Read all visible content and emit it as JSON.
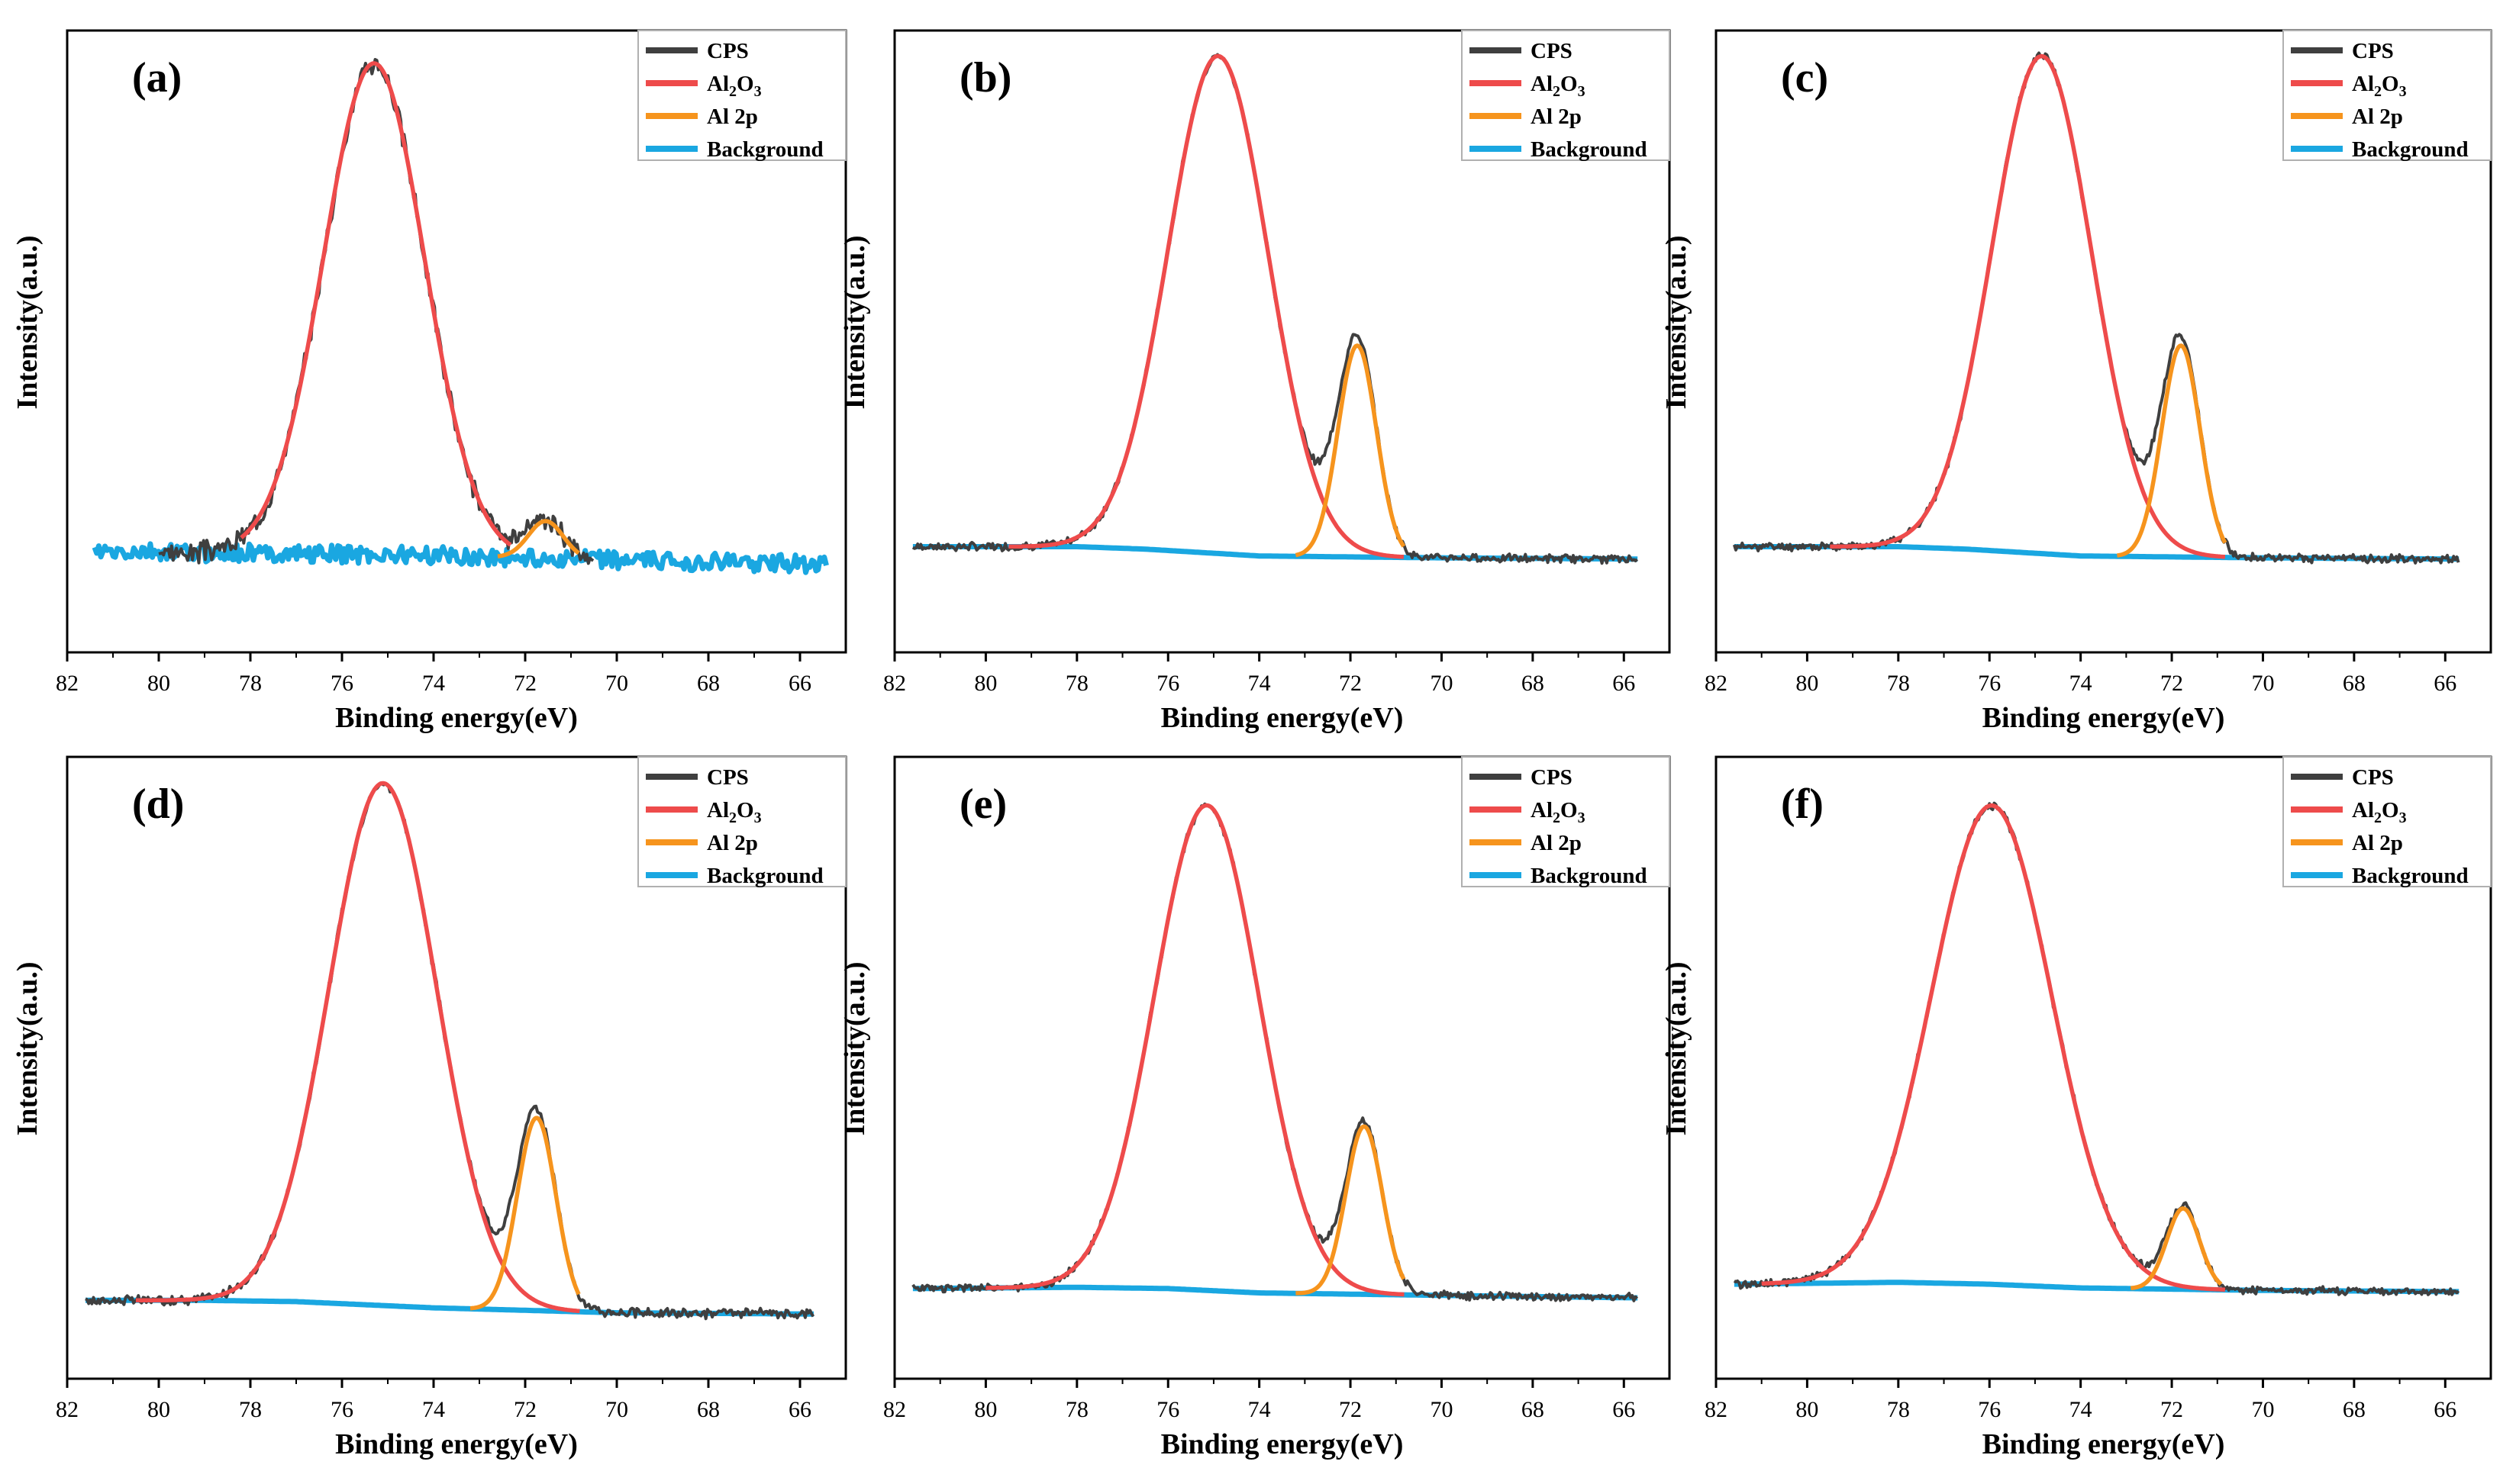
{
  "figure": {
    "colors": {
      "cps": "#3f3f3f",
      "al2o3": "#ee4b4b",
      "al2p": "#f6941d",
      "background": "#1aa7e1",
      "axis": "#000000",
      "legend_border": "#b0b0b0"
    },
    "legend": {
      "cps": "CPS",
      "al2o3_base": "Al",
      "al2o3_sub1": "2",
      "al2o3_mid": "O",
      "al2o3_sub2": "3",
      "al2p": "Al 2p",
      "background": "Background",
      "placement": "top-right"
    }
  },
  "chart_data": [
    {
      "type": "line",
      "panel_label": "(a)",
      "xlabel": "Binding energy(eV)",
      "ylabel": "Intensity(a.u.)",
      "xlim": [
        82,
        65
      ],
      "xticks": [
        "82",
        "80",
        "78",
        "76",
        "74",
        "72",
        "70",
        "68",
        "66"
      ],
      "ylim": [
        0,
        1.0
      ],
      "x_start": 81.4,
      "x_end": 65.4,
      "noise": 0.013,
      "seed": 3,
      "background": [
        [
          81.4,
          0.16
        ],
        [
          78,
          0.16
        ],
        [
          74,
          0.156
        ],
        [
          70,
          0.148
        ],
        [
          65.4,
          0.142
        ]
      ],
      "series": [
        {
          "name": "Al2O3",
          "center": 75.3,
          "height": 0.79,
          "sigma": 1.1,
          "x_range": [
            78.2,
            72.3
          ]
        },
        {
          "name": "Al 2p",
          "center": 71.55,
          "height": 0.06,
          "sigma": 0.38,
          "x_range": [
            72.6,
            70.8
          ]
        }
      ],
      "cps_x_range": [
        80.0,
        70.5
      ]
    },
    {
      "type": "line",
      "panel_label": "(b)",
      "xlabel": "Binding energy(eV)",
      "ylabel": "Intensity(a.u.)",
      "xlim": [
        82,
        65
      ],
      "xticks": [
        "82",
        "80",
        "78",
        "76",
        "74",
        "72",
        "70",
        "68",
        "66"
      ],
      "ylim": [
        0,
        1.0
      ],
      "x_start": 81.6,
      "x_end": 65.7,
      "noise": 0.005,
      "seed": 7,
      "background": [
        [
          81.6,
          0.17
        ],
        [
          78,
          0.17
        ],
        [
          76.5,
          0.166
        ],
        [
          74,
          0.155
        ],
        [
          70,
          0.152
        ],
        [
          65.7,
          0.15
        ]
      ],
      "series": [
        {
          "name": "Al2O3",
          "center": 74.9,
          "height": 0.8,
          "sigma": 1.1,
          "x_range": [
            79.5,
            70.8
          ]
        },
        {
          "name": "Al 2p",
          "center": 71.85,
          "height": 0.34,
          "sigma": 0.42,
          "x_range": [
            73.2,
            70.8
          ]
        }
      ],
      "cps_x_range": [
        81.6,
        65.7
      ]
    },
    {
      "type": "line",
      "panel_label": "(c)",
      "xlabel": "Binding energy(eV)",
      "ylabel": "Intensity(a.u.)",
      "xlim": [
        82,
        65
      ],
      "xticks": [
        "82",
        "80",
        "78",
        "76",
        "74",
        "72",
        "70",
        "68",
        "66"
      ],
      "ylim": [
        0,
        1.0
      ],
      "x_start": 81.6,
      "x_end": 65.7,
      "noise": 0.005,
      "seed": 11,
      "background": [
        [
          81.6,
          0.17
        ],
        [
          78,
          0.17
        ],
        [
          76.5,
          0.166
        ],
        [
          74,
          0.155
        ],
        [
          70,
          0.152
        ],
        [
          65.7,
          0.15
        ]
      ],
      "series": [
        {
          "name": "Al2O3",
          "center": 74.85,
          "height": 0.8,
          "sigma": 1.1,
          "x_range": [
            79.5,
            70.8
          ]
        },
        {
          "name": "Al 2p",
          "center": 71.8,
          "height": 0.34,
          "sigma": 0.42,
          "x_range": [
            73.2,
            70.8
          ]
        }
      ],
      "cps_x_range": [
        81.6,
        65.7
      ]
    },
    {
      "type": "line",
      "panel_label": "(d)",
      "xlabel": "Binding energy(eV)",
      "ylabel": "Intensity(a.u.)",
      "xlim": [
        82,
        65
      ],
      "xticks": [
        "82",
        "80",
        "78",
        "76",
        "74",
        "72",
        "70",
        "68",
        "66"
      ],
      "ylim": [
        0,
        1.0
      ],
      "x_start": 81.6,
      "x_end": 65.7,
      "noise": 0.006,
      "seed": 17,
      "background": [
        [
          81.6,
          0.126
        ],
        [
          79,
          0.126
        ],
        [
          77,
          0.124
        ],
        [
          74,
          0.114
        ],
        [
          70,
          0.106
        ],
        [
          65.7,
          0.104
        ]
      ],
      "series": [
        {
          "name": "Al2O3",
          "center": 75.1,
          "height": 0.84,
          "sigma": 1.18,
          "x_range": [
            80.5,
            70.8
          ]
        },
        {
          "name": "Al 2p",
          "center": 71.75,
          "height": 0.31,
          "sigma": 0.42,
          "x_range": [
            73.2,
            70.8
          ]
        }
      ],
      "cps_x_range": [
        81.6,
        65.7
      ]
    },
    {
      "type": "line",
      "panel_label": "(e)",
      "xlabel": "Binding energy(eV)",
      "ylabel": "Intensity(a.u.)",
      "xlim": [
        82,
        65
      ],
      "xticks": [
        "82",
        "80",
        "78",
        "76",
        "74",
        "72",
        "70",
        "68",
        "66"
      ],
      "ylim": [
        0,
        1.0
      ],
      "x_start": 81.6,
      "x_end": 65.7,
      "noise": 0.005,
      "seed": 23,
      "background": [
        [
          81.6,
          0.145
        ],
        [
          78,
          0.147
        ],
        [
          76,
          0.145
        ],
        [
          74,
          0.138
        ],
        [
          70,
          0.134
        ],
        [
          65.7,
          0.13
        ]
      ],
      "series": [
        {
          "name": "Al2O3",
          "center": 75.15,
          "height": 0.78,
          "sigma": 1.15,
          "x_range": [
            80.0,
            70.8
          ]
        },
        {
          "name": "Al 2p",
          "center": 71.7,
          "height": 0.27,
          "sigma": 0.4,
          "x_range": [
            73.2,
            70.8
          ]
        }
      ],
      "cps_x_range": [
        81.6,
        65.7
      ]
    },
    {
      "type": "line",
      "panel_label": "(f)",
      "xlabel": "Binding energy(eV)",
      "ylabel": "Intensity(a.u.)",
      "xlim": [
        82,
        65
      ],
      "xticks": [
        "82",
        "80",
        "78",
        "76",
        "74",
        "72",
        "70",
        "68",
        "66"
      ],
      "ylim": [
        0,
        1.0
      ],
      "x_start": 81.6,
      "x_end": 65.7,
      "noise": 0.005,
      "seed": 29,
      "background": [
        [
          81.6,
          0.152
        ],
        [
          78,
          0.155
        ],
        [
          76,
          0.152
        ],
        [
          74,
          0.146
        ],
        [
          70,
          0.142
        ],
        [
          65.7,
          0.14
        ]
      ],
      "series": [
        {
          "name": "Al2O3",
          "center": 75.95,
          "height": 0.77,
          "sigma": 1.32,
          "x_range": [
            81.0,
            70.8
          ]
        },
        {
          "name": "Al 2p",
          "center": 71.75,
          "height": 0.13,
          "sigma": 0.36,
          "x_range": [
            72.9,
            70.9
          ]
        }
      ],
      "cps_x_range": [
        81.6,
        65.7
      ]
    }
  ]
}
